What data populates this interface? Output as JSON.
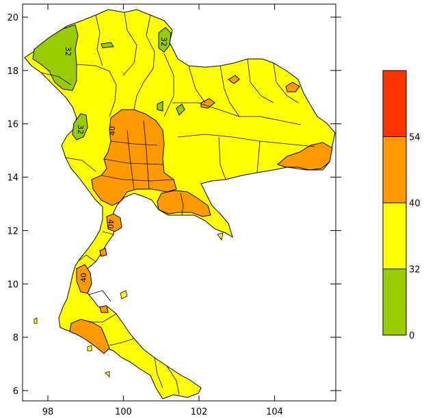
{
  "map": {
    "x_ticks": [
      "98",
      "100",
      "102",
      "104"
    ],
    "y_ticks": [
      "6",
      "8",
      "10",
      "12",
      "14",
      "16",
      "18",
      "20"
    ],
    "contour_labels": [
      "32",
      "32",
      "32",
      "40",
      "40",
      "40"
    ]
  },
  "legend": {
    "bins": [
      {
        "from": 0,
        "to": 32,
        "color": "#99cc00"
      },
      {
        "from": 32,
        "to": 40,
        "color": "#ffff00"
      },
      {
        "from": 40,
        "to": 54,
        "color": "#ff9900"
      },
      {
        "from": 54,
        "to": null,
        "color": "#ff3300"
      }
    ],
    "labels": [
      "0",
      "32",
      "40",
      "54"
    ]
  },
  "colors": {
    "low": "#99cc00",
    "mid": "#ffff00",
    "high": "#ff9900",
    "very_high": "#ff3300",
    "sea": "#ffffff",
    "border": "#000000"
  }
}
